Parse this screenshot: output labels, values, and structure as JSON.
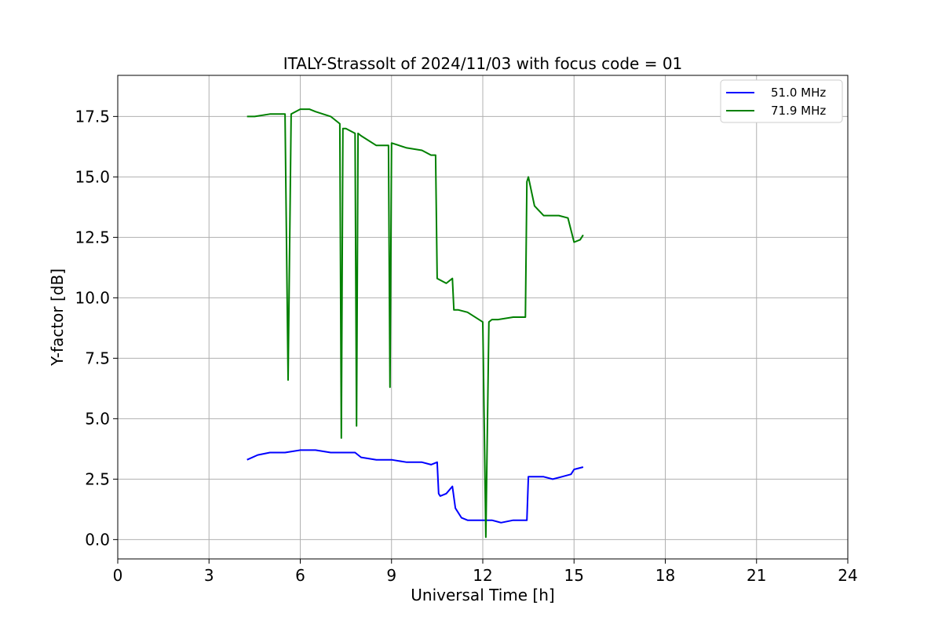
{
  "chart_data": {
    "type": "line",
    "title": "ITALY-Strassolt of 2024/11/03 with focus code = 01",
    "xlabel": "Universal Time [h]",
    "ylabel": "Y-factor [dB]",
    "xlim": [
      0,
      24
    ],
    "ylim": [
      -0.8,
      19.2
    ],
    "x_ticks": [
      0,
      3,
      6,
      9,
      12,
      15,
      18,
      21,
      24
    ],
    "y_ticks": [
      0.0,
      2.5,
      5.0,
      7.5,
      10.0,
      12.5,
      15.0,
      17.5
    ],
    "x_tick_labels": [
      "0",
      "3",
      "6",
      "9",
      "12",
      "15",
      "18",
      "21",
      "24"
    ],
    "y_tick_labels": [
      "0.0",
      "2.5",
      "5.0",
      "7.5",
      "10.0",
      "12.5",
      "15.0",
      "17.5"
    ],
    "grid": true,
    "legend_position": "top-right",
    "series": [
      {
        "name": "51.0 MHz",
        "color": "#0000ff",
        "x": [
          4.25,
          4.6,
          5.0,
          5.5,
          6.0,
          6.5,
          7.0,
          7.3,
          7.5,
          7.8,
          8.0,
          8.5,
          9.0,
          9.5,
          10.0,
          10.3,
          10.5,
          10.55,
          10.6,
          10.8,
          11.0,
          11.1,
          11.3,
          11.5,
          11.8,
          12.0,
          12.3,
          12.6,
          13.0,
          13.3,
          13.45,
          13.5,
          13.8,
          14.0,
          14.3,
          14.6,
          14.9,
          15.0,
          15.3
        ],
        "y": [
          3.3,
          3.5,
          3.6,
          3.6,
          3.7,
          3.7,
          3.6,
          3.6,
          3.6,
          3.6,
          3.4,
          3.3,
          3.3,
          3.2,
          3.2,
          3.1,
          3.2,
          1.9,
          1.8,
          1.9,
          2.2,
          1.3,
          0.9,
          0.8,
          0.8,
          0.8,
          0.8,
          0.7,
          0.8,
          0.8,
          0.8,
          2.6,
          2.6,
          2.6,
          2.5,
          2.6,
          2.7,
          2.9,
          3.0
        ]
      },
      {
        "name": "71.9 MHz",
        "color": "#008000",
        "x": [
          4.25,
          4.5,
          5.0,
          5.5,
          5.6,
          5.7,
          6.0,
          6.2,
          6.3,
          6.5,
          7.0,
          7.3,
          7.35,
          7.4,
          7.5,
          7.8,
          7.85,
          7.9,
          8.0,
          8.5,
          8.9,
          8.95,
          9.0,
          9.5,
          10.0,
          10.3,
          10.45,
          10.5,
          10.8,
          11.0,
          11.05,
          11.2,
          11.5,
          12.0,
          12.1,
          12.2,
          12.3,
          12.5,
          13.0,
          13.3,
          13.4,
          13.45,
          13.5,
          13.7,
          14.0,
          14.3,
          14.5,
          14.8,
          15.0,
          15.2,
          15.3
        ],
        "y": [
          17.5,
          17.5,
          17.6,
          17.6,
          6.6,
          17.6,
          17.8,
          17.8,
          17.8,
          17.7,
          17.5,
          17.2,
          4.2,
          17.0,
          17.0,
          16.8,
          4.7,
          16.8,
          16.7,
          16.3,
          16.3,
          6.3,
          16.4,
          16.2,
          16.1,
          15.9,
          15.9,
          10.8,
          10.6,
          10.8,
          9.5,
          9.5,
          9.4,
          9.0,
          0.1,
          9.0,
          9.1,
          9.1,
          9.2,
          9.2,
          9.2,
          14.8,
          15.0,
          13.8,
          13.4,
          13.4,
          13.4,
          13.3,
          12.3,
          12.4,
          12.6
        ]
      }
    ]
  }
}
